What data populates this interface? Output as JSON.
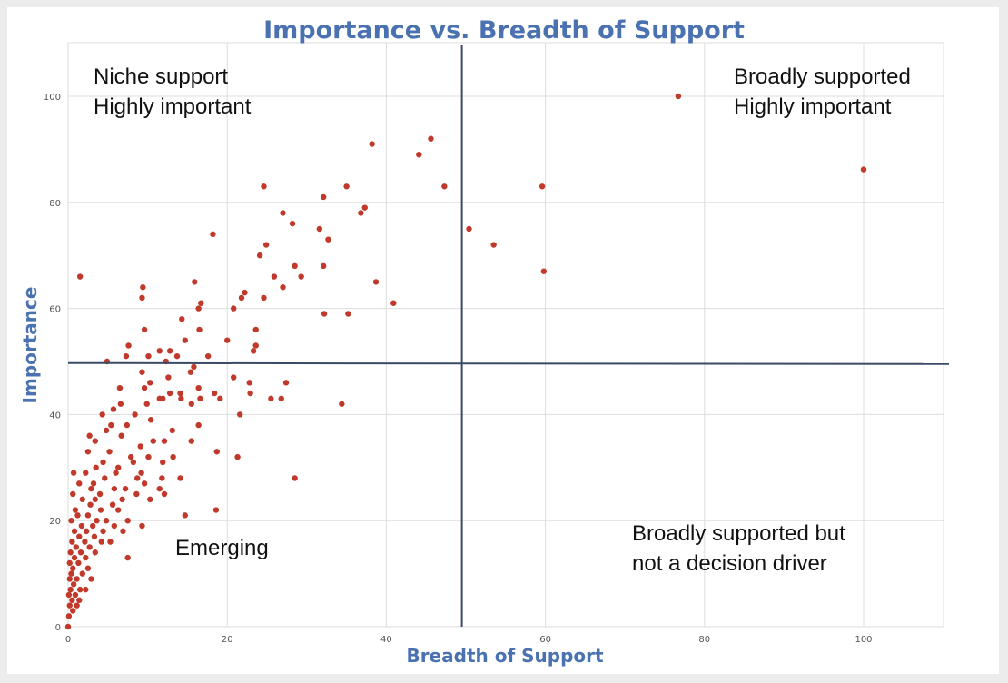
{
  "chart_data": {
    "type": "scatter",
    "title": "Importance vs. Breadth of Support",
    "xlabel": "Breadth of Support",
    "ylabel": "Importance",
    "xlim": [
      0,
      110
    ],
    "ylim": [
      0,
      110
    ],
    "xticks": [
      0,
      20,
      40,
      60,
      80,
      100
    ],
    "yticks": [
      0,
      20,
      40,
      60,
      80,
      100
    ],
    "grid": true,
    "reference_lines": {
      "x": 49.5,
      "y": 49.7
    },
    "point_color": "#c0392b",
    "line_color": "#3b4a66",
    "quadrant_labels": [
      {
        "id": "top-left",
        "lines": [
          "Niche support",
          "Highly important"
        ]
      },
      {
        "id": "top-right",
        "lines": [
          "Broadly supported",
          "Highly important"
        ]
      },
      {
        "id": "bottom-right",
        "lines": [
          "Broadly supported but",
          "not a decision driver"
        ]
      },
      {
        "id": "bottom-left",
        "lines": [
          "Emerging"
        ]
      }
    ],
    "points": [
      [
        76.7,
        100
      ],
      [
        100,
        86.2
      ],
      [
        45.6,
        92
      ],
      [
        38.2,
        91
      ],
      [
        44.1,
        89
      ],
      [
        47.3,
        83
      ],
      [
        59.6,
        83
      ],
      [
        24.6,
        83
      ],
      [
        35,
        83
      ],
      [
        32.1,
        81
      ],
      [
        37.3,
        79
      ],
      [
        36.8,
        78
      ],
      [
        27,
        78
      ],
      [
        28.2,
        76
      ],
      [
        31.6,
        75
      ],
      [
        50.4,
        75
      ],
      [
        32.7,
        73
      ],
      [
        53.5,
        72
      ],
      [
        24.9,
        72
      ],
      [
        24.1,
        70
      ],
      [
        28.5,
        68
      ],
      [
        32.1,
        68
      ],
      [
        59.8,
        67
      ],
      [
        25.9,
        66
      ],
      [
        29.3,
        66
      ],
      [
        38.7,
        65
      ],
      [
        27,
        64
      ],
      [
        1.5,
        66
      ],
      [
        15.9,
        65
      ],
      [
        9.4,
        64
      ],
      [
        22.2,
        63
      ],
      [
        21.8,
        62
      ],
      [
        24.6,
        62
      ],
      [
        9.3,
        62
      ],
      [
        16.7,
        61
      ],
      [
        40.9,
        61
      ],
      [
        16.4,
        60
      ],
      [
        20.8,
        60
      ],
      [
        32.2,
        59
      ],
      [
        35.2,
        59
      ],
      [
        14.3,
        58
      ],
      [
        9.6,
        56
      ],
      [
        16.5,
        56
      ],
      [
        23.6,
        56
      ],
      [
        7.6,
        53
      ],
      [
        20,
        54
      ],
      [
        14.7,
        54
      ],
      [
        23.6,
        53
      ],
      [
        11.5,
        52
      ],
      [
        12.8,
        52
      ],
      [
        23.3,
        52
      ],
      [
        17.6,
        51
      ],
      [
        10.1,
        51
      ],
      [
        7.3,
        51
      ],
      [
        13.7,
        51
      ],
      [
        12.3,
        50
      ],
      [
        4.9,
        50
      ],
      [
        9.3,
        48
      ],
      [
        15.4,
        48
      ],
      [
        15.8,
        49
      ],
      [
        18.2,
        74
      ],
      [
        12.6,
        47
      ],
      [
        11.9,
        43
      ],
      [
        20.8,
        47
      ],
      [
        22.8,
        46
      ],
      [
        27.4,
        46
      ],
      [
        16.4,
        45
      ],
      [
        9.6,
        45
      ],
      [
        10.3,
        46
      ],
      [
        6.5,
        45
      ],
      [
        12.8,
        44
      ],
      [
        14.1,
        44
      ],
      [
        18.4,
        44
      ],
      [
        22.9,
        44
      ],
      [
        11.5,
        43
      ],
      [
        14.2,
        43
      ],
      [
        16.6,
        43
      ],
      [
        25.5,
        43
      ],
      [
        26.8,
        43
      ],
      [
        34.4,
        42
      ],
      [
        19.1,
        43
      ],
      [
        15.5,
        42
      ],
      [
        9.9,
        42
      ],
      [
        6.6,
        42
      ],
      [
        4.3,
        40
      ],
      [
        5.7,
        41
      ],
      [
        8.4,
        40
      ],
      [
        10.4,
        39
      ],
      [
        13.1,
        37
      ],
      [
        16.4,
        38
      ],
      [
        21.6,
        40
      ],
      [
        7.4,
        38
      ],
      [
        5.4,
        38
      ],
      [
        4.8,
        37
      ],
      [
        2.7,
        36
      ],
      [
        6.7,
        36
      ],
      [
        10.7,
        35
      ],
      [
        12.1,
        35
      ],
      [
        15.5,
        35
      ],
      [
        3.4,
        35
      ],
      [
        9.1,
        34
      ],
      [
        7.9,
        32
      ],
      [
        5.2,
        33
      ],
      [
        2.5,
        33
      ],
      [
        4.4,
        31
      ],
      [
        6.3,
        30
      ],
      [
        8.2,
        31
      ],
      [
        10.1,
        32
      ],
      [
        13.2,
        32
      ],
      [
        18.7,
        33
      ],
      [
        21.3,
        32
      ],
      [
        11.9,
        31
      ],
      [
        3.5,
        30
      ],
      [
        6,
        29
      ],
      [
        9.2,
        29
      ],
      [
        0.7,
        29
      ],
      [
        2.2,
        29
      ],
      [
        4.6,
        28
      ],
      [
        8.7,
        28
      ],
      [
        11.8,
        28
      ],
      [
        14.1,
        28
      ],
      [
        28.5,
        28
      ],
      [
        3.2,
        27
      ],
      [
        5.8,
        26
      ],
      [
        1.4,
        27
      ],
      [
        2.9,
        26
      ],
      [
        7.2,
        26
      ],
      [
        9.6,
        27
      ],
      [
        11.5,
        26
      ],
      [
        4,
        25
      ],
      [
        6.8,
        24
      ],
      [
        0.6,
        25
      ],
      [
        1.8,
        24
      ],
      [
        3.4,
        24
      ],
      [
        5.6,
        23
      ],
      [
        8.6,
        25
      ],
      [
        12.1,
        25
      ],
      [
        10.3,
        24
      ],
      [
        2.8,
        23
      ],
      [
        0.9,
        22
      ],
      [
        4.1,
        22
      ],
      [
        6.3,
        22
      ],
      [
        18.6,
        22
      ],
      [
        14.7,
        21
      ],
      [
        1.2,
        21
      ],
      [
        2.5,
        21
      ],
      [
        3.6,
        20
      ],
      [
        4.8,
        20
      ],
      [
        7.5,
        20
      ],
      [
        0.4,
        20
      ],
      [
        1.7,
        19
      ],
      [
        3.1,
        19
      ],
      [
        5.8,
        19
      ],
      [
        9.3,
        19
      ],
      [
        0.8,
        18
      ],
      [
        2.3,
        18
      ],
      [
        4.4,
        18
      ],
      [
        6.9,
        18
      ],
      [
        1.4,
        17
      ],
      [
        3.3,
        17
      ],
      [
        0.5,
        16
      ],
      [
        2.1,
        16
      ],
      [
        4.2,
        16
      ],
      [
        5.3,
        16
      ],
      [
        1,
        15
      ],
      [
        2.7,
        15
      ],
      [
        0.3,
        14
      ],
      [
        1.6,
        14
      ],
      [
        3.4,
        14
      ],
      [
        0.8,
        13
      ],
      [
        2.2,
        13
      ],
      [
        7.5,
        13
      ],
      [
        0.2,
        12
      ],
      [
        1.3,
        12
      ],
      [
        2.5,
        11
      ],
      [
        0.6,
        11
      ],
      [
        1.8,
        10
      ],
      [
        0.4,
        10
      ],
      [
        1.1,
        9
      ],
      [
        0.2,
        9
      ],
      [
        2.9,
        9
      ],
      [
        0.7,
        8
      ],
      [
        1.5,
        7
      ],
      [
        0.3,
        7
      ],
      [
        2.2,
        7
      ],
      [
        0.9,
        6
      ],
      [
        0.1,
        6
      ],
      [
        1.4,
        5
      ],
      [
        0.5,
        5
      ],
      [
        0.2,
        4
      ],
      [
        1.1,
        4
      ],
      [
        0.6,
        3
      ],
      [
        0.1,
        2
      ],
      [
        0,
        0
      ]
    ]
  }
}
